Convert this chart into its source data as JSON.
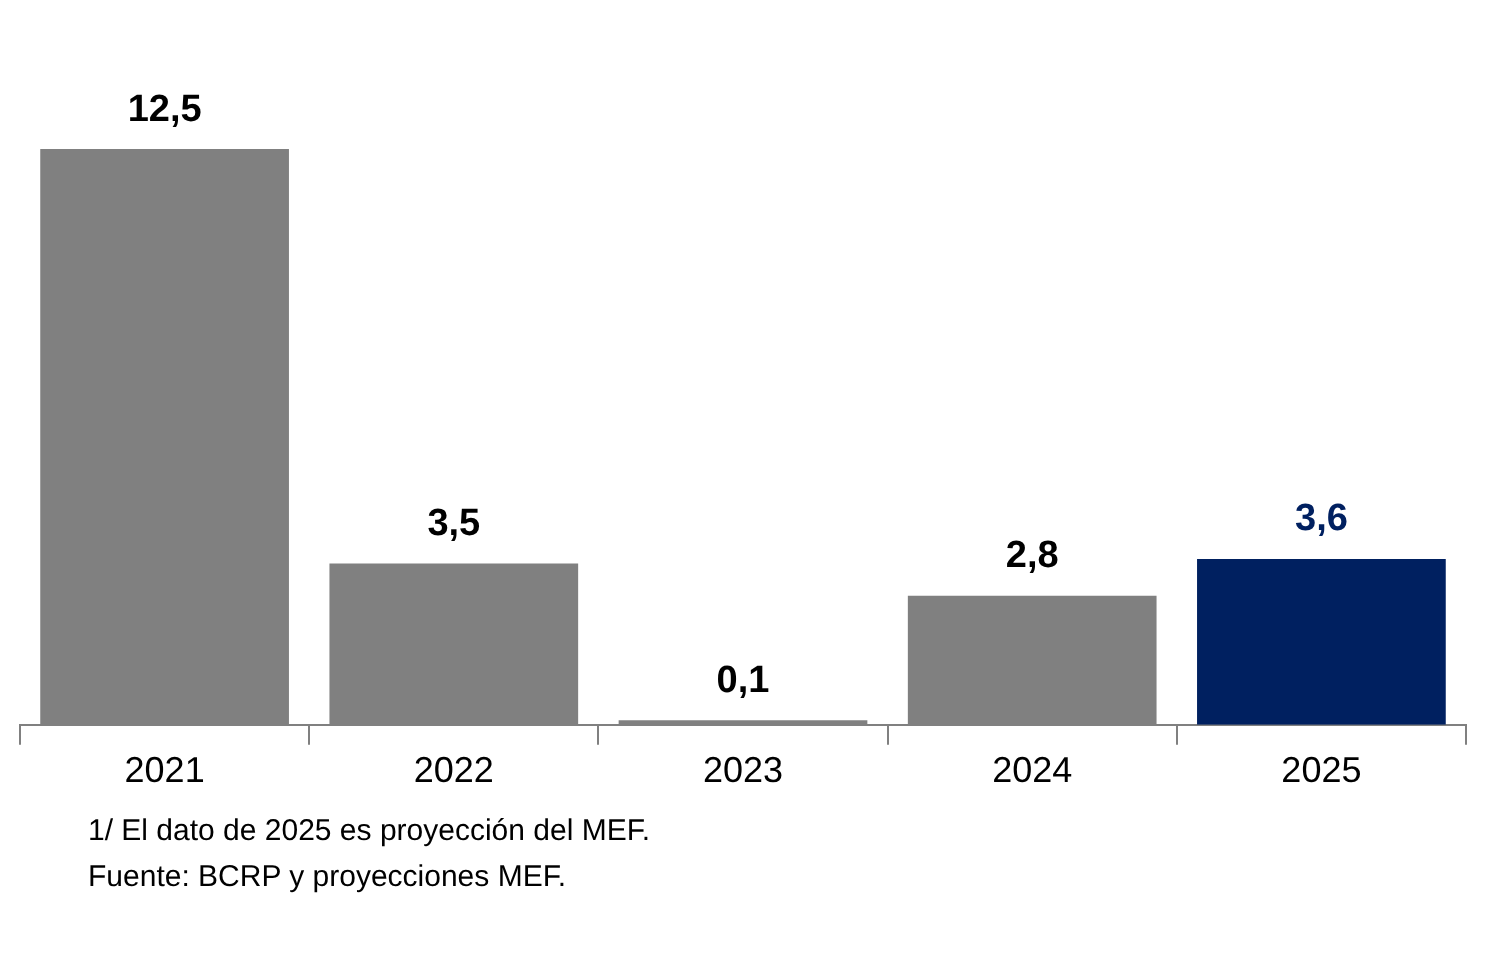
{
  "chart_data": {
    "type": "bar",
    "categories": [
      "2021",
      "2022",
      "2023",
      "2024",
      "2025"
    ],
    "values": [
      12.5,
      3.5,
      0.1,
      2.8,
      3.6
    ],
    "colors": [
      "#808080",
      "#808080",
      "#808080",
      "#808080",
      "#002060"
    ],
    "value_labels": [
      "12,5",
      "3,5",
      "0,1",
      "2,8",
      "3,6"
    ],
    "grid": false,
    "legend": false,
    "annotations": [
      "1/ El dato de 2025 es proyección del MEF.",
      "Fuente: BCRP y proyecciones MEF."
    ]
  }
}
